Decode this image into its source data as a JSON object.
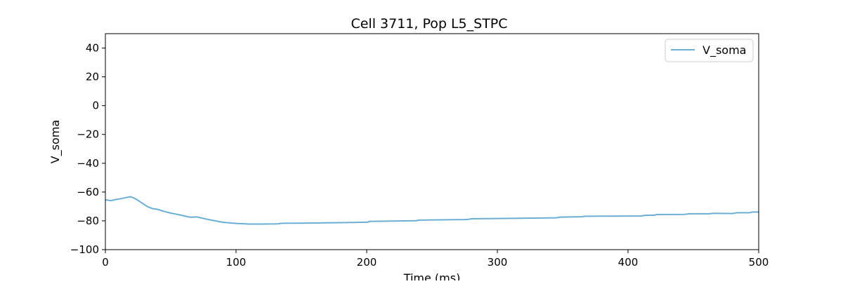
{
  "chart_data": {
    "type": "line",
    "title": "Cell 3711, Pop L5_STPC",
    "xlabel": "Time (ms)",
    "ylabel": "V_soma",
    "xlim": [
      0,
      500
    ],
    "ylim": [
      -100,
      50
    ],
    "x_ticks": [
      0,
      100,
      200,
      300,
      400,
      500
    ],
    "y_ticks": [
      -100,
      -80,
      -60,
      -40,
      -20,
      0,
      20,
      40
    ],
    "x_tick_labels": [
      "0",
      "100",
      "200",
      "300",
      "400",
      "500"
    ],
    "y_tick_labels": [
      "−100",
      "−80",
      "−60",
      "−40",
      "−20",
      "0",
      "20",
      "40"
    ],
    "grid": false,
    "legend_position": "top-right",
    "series": [
      {
        "name": "V_soma",
        "color": "#6aaed6",
        "x": [
          0,
          2,
          4,
          6,
          8,
          12,
          16,
          19,
          21,
          24,
          28,
          32,
          36,
          40,
          45,
          50,
          55,
          60,
          65,
          70,
          75,
          80,
          90,
          100,
          110,
          120,
          132,
          135,
          150,
          170,
          190,
          201,
          202,
          238,
          240,
          275,
          279,
          280,
          345,
          348,
          364,
          367,
          410,
          413,
          420,
          422,
          443,
          447,
          462,
          465,
          480,
          483,
          493,
          495,
          500
        ],
        "y": [
          -65.5,
          -65.6,
          -66,
          -65.6,
          -65.2,
          -64.6,
          -63.8,
          -63.3,
          -63.8,
          -65.2,
          -67.6,
          -70,
          -71.5,
          -72,
          -73.5,
          -74.6,
          -75.5,
          -76.5,
          -77.5,
          -77.3,
          -78.3,
          -79.3,
          -81,
          -81.8,
          -82.2,
          -82.2,
          -82.1,
          -81.7,
          -81.6,
          -81.4,
          -81.1,
          -80.9,
          -80.4,
          -79.9,
          -79.5,
          -79.1,
          -78.8,
          -78.6,
          -77.9,
          -77.4,
          -77.2,
          -76.8,
          -76.6,
          -76.2,
          -76.1,
          -75.6,
          -75.5,
          -75.1,
          -75.1,
          -74.8,
          -74.9,
          -74.4,
          -74.4,
          -73.9,
          -73.9
        ]
      }
    ]
  }
}
